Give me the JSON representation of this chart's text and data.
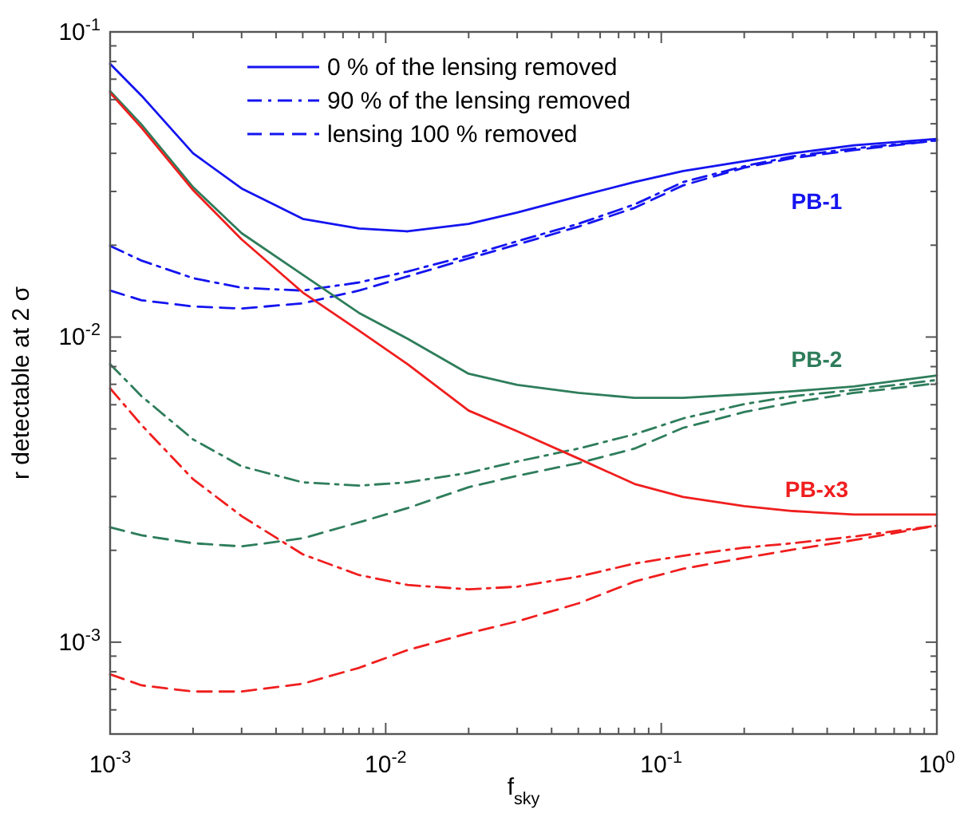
{
  "chart_data": {
    "type": "line",
    "xlabel": "f$_{sky}$",
    "ylabel": "r detectable at 2 σ",
    "log": "xy",
    "grid": false,
    "legend": "top",
    "x": [
      0.001,
      0.0013,
      0.002,
      0.003,
      0.005,
      0.008,
      0.012,
      0.02,
      0.03,
      0.05,
      0.08,
      0.12,
      0.2,
      0.3,
      0.5,
      1
    ],
    "xlim": [
      0.001,
      1
    ],
    "ylim": [
      0.0005,
      0.1
    ],
    "xticks": [
      {
        "value": 0.001,
        "label": "10$^{-3}$"
      },
      {
        "value": 0.002,
        "label": null
      },
      {
        "value": 0.003,
        "label": null
      },
      {
        "value": 0.004,
        "label": null
      },
      {
        "value": 0.005,
        "label": null
      },
      {
        "value": 0.006,
        "label": null
      },
      {
        "value": 0.007,
        "label": null
      },
      {
        "value": 0.008,
        "label": null
      },
      {
        "value": 0.009,
        "label": null
      },
      {
        "value": 0.01,
        "label": "10$^{-2}$"
      },
      {
        "value": 0.02,
        "label": null
      },
      {
        "value": 0.03,
        "label": null
      },
      {
        "value": 0.04,
        "label": null
      },
      {
        "value": 0.05,
        "label": null
      },
      {
        "value": 0.06,
        "label": null
      },
      {
        "value": 0.07,
        "label": null
      },
      {
        "value": 0.08,
        "label": null
      },
      {
        "value": 0.09,
        "label": null
      },
      {
        "value": 0.1,
        "label": "10$^{-1}$"
      },
      {
        "value": 0.2,
        "label": null
      },
      {
        "value": 0.3,
        "label": null
      },
      {
        "value": 0.4,
        "label": null
      },
      {
        "value": 0.5,
        "label": null
      },
      {
        "value": 0.6,
        "label": null
      },
      {
        "value": 0.7,
        "label": null
      },
      {
        "value": 0.8,
        "label": null
      },
      {
        "value": 0.9,
        "label": null
      },
      {
        "value": 1,
        "label": "10$^{0}$"
      }
    ],
    "yticks": [
      {
        "value": 0.0006,
        "label": null
      },
      {
        "value": 0.0007,
        "label": null
      },
      {
        "value": 0.0008,
        "label": null
      },
      {
        "value": 0.0009,
        "label": null
      },
      {
        "value": 0.001,
        "label": "10$^{-3}$"
      },
      {
        "value": 0.002,
        "label": null
      },
      {
        "value": 0.003,
        "label": null
      },
      {
        "value": 0.004,
        "label": null
      },
      {
        "value": 0.005,
        "label": null
      },
      {
        "value": 0.006,
        "label": null
      },
      {
        "value": 0.007,
        "label": null
      },
      {
        "value": 0.008,
        "label": null
      },
      {
        "value": 0.009,
        "label": null
      },
      {
        "value": 0.01,
        "label": "10$^{-2}$"
      },
      {
        "value": 0.02,
        "label": null
      },
      {
        "value": 0.03,
        "label": null
      },
      {
        "value": 0.04,
        "label": null
      },
      {
        "value": 0.05,
        "label": null
      },
      {
        "value": 0.06,
        "label": null
      },
      {
        "value": 0.07,
        "label": null
      },
      {
        "value": 0.08,
        "label": null
      },
      {
        "value": 0.09,
        "label": null
      },
      {
        "value": 0.1,
        "label": "10$^{-1}$"
      }
    ],
    "series": [
      {
        "name": "0 % of the lensing removed",
        "color": "#1414f0",
        "line_style": "solid",
        "values": [
          0.0786,
          0.0618,
          0.04,
          0.0307,
          0.0244,
          0.0227,
          0.0222,
          0.0235,
          0.0256,
          0.0289,
          0.0322,
          0.035,
          0.0377,
          0.04,
          0.0425,
          0.0446
        ]
      },
      {
        "name": "90 % of the lensing removed",
        "color": "#1414f0",
        "line_style": "dashdot",
        "values": [
          0.0199,
          0.0178,
          0.0156,
          0.0145,
          0.0142,
          0.0151,
          0.0164,
          0.0185,
          0.0206,
          0.0235,
          0.0272,
          0.0322,
          0.0363,
          0.0391,
          0.0415,
          0.0441
        ]
      },
      {
        "name": "lensing 100 % removed",
        "color": "#1414f0",
        "line_style": "dashed",
        "values": [
          0.0142,
          0.0132,
          0.0126,
          0.0124,
          0.0129,
          0.0142,
          0.0158,
          0.0181,
          0.0201,
          0.023,
          0.0265,
          0.0314,
          0.0359,
          0.0386,
          0.041,
          0.0441
        ]
      },
      {
        "color": "#2e7d5b",
        "line_style": "solid",
        "values": [
          0.064,
          0.0497,
          0.031,
          0.0219,
          0.016,
          0.012,
          0.00988,
          0.00758,
          0.00697,
          0.00656,
          0.00632,
          0.00632,
          0.00649,
          0.00664,
          0.00689,
          0.00748
        ]
      },
      {
        "color": "#2e7d5b",
        "line_style": "dashdot",
        "values": [
          0.00815,
          0.0064,
          0.00462,
          0.00377,
          0.00334,
          0.00326,
          0.00334,
          0.00359,
          0.00391,
          0.00431,
          0.0048,
          0.00541,
          0.00603,
          0.0064,
          0.00671,
          0.00723
        ]
      },
      {
        "color": "#2e7d5b",
        "line_style": "dashed",
        "values": [
          0.00238,
          0.00224,
          0.00211,
          0.00206,
          0.00219,
          0.00247,
          0.00275,
          0.00322,
          0.00351,
          0.00386,
          0.00431,
          0.00504,
          0.00568,
          0.0061,
          0.00656,
          0.00705
        ]
      },
      {
        "color": "#f01e1e",
        "line_style": "solid",
        "values": [
          0.0632,
          0.0485,
          0.0303,
          0.0209,
          0.014,
          0.0105,
          0.00815,
          0.00574,
          0.00491,
          0.004,
          0.0033,
          0.00299,
          0.00279,
          0.00269,
          0.00262,
          0.00262
        ]
      },
      {
        "color": "#f01e1e",
        "line_style": "dashdot",
        "values": [
          0.00679,
          0.00515,
          0.00342,
          0.00259,
          0.00194,
          0.00166,
          0.00154,
          0.00149,
          0.00152,
          0.00164,
          0.00181,
          0.00192,
          0.00204,
          0.00211,
          0.00222,
          0.00241
        ]
      },
      {
        "color": "#f01e1e",
        "line_style": "dashed",
        "values": [
          0.000785,
          0.000722,
          0.000689,
          0.000689,
          0.000731,
          0.000824,
          0.000942,
          0.00107,
          0.00117,
          0.00134,
          0.00158,
          0.00174,
          0.00189,
          0.00201,
          0.00216,
          0.00241
        ]
      }
    ],
    "annotations": [
      "PB-1",
      "PB-2",
      "PB-x3"
    ]
  }
}
